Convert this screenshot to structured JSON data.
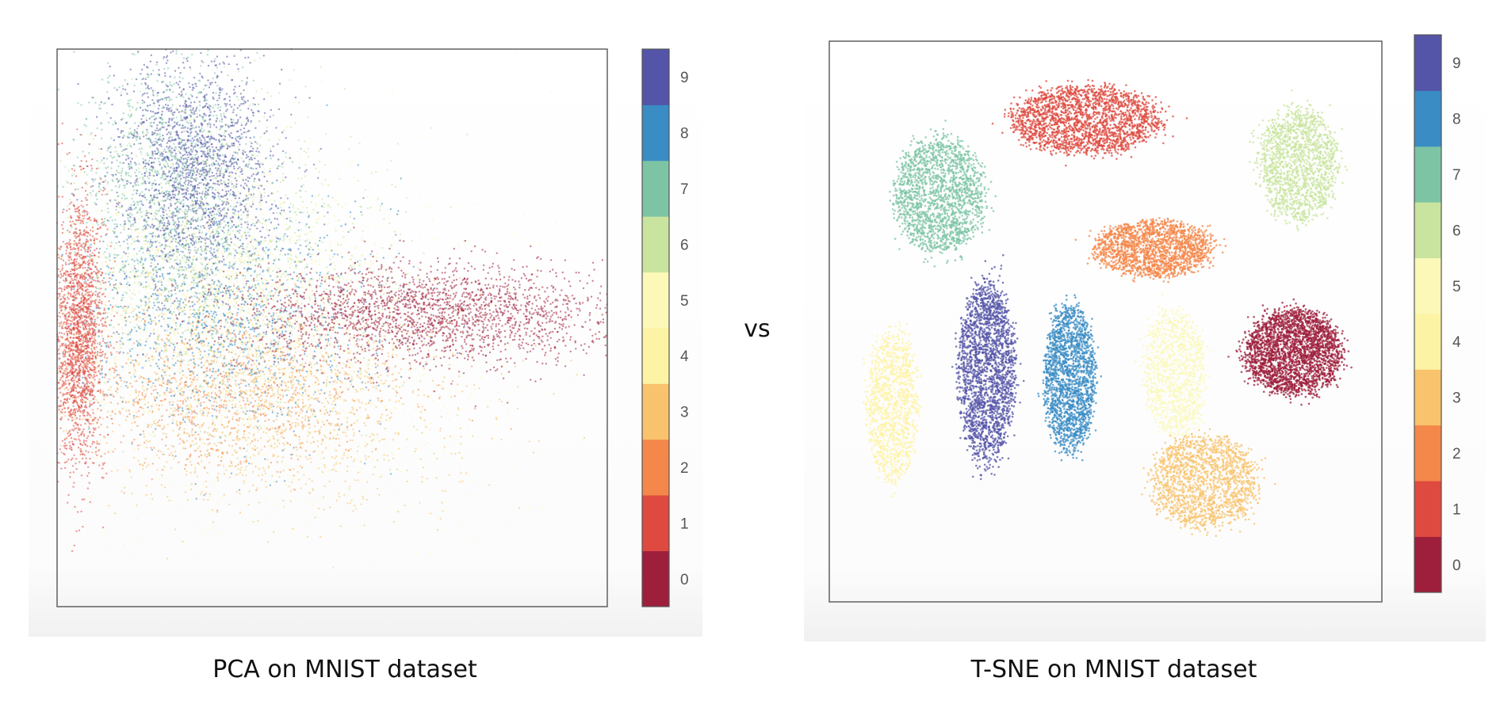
{
  "vs_label": "vs",
  "chart_data": [
    {
      "type": "scatter",
      "caption": "PCA on MNIST dataset",
      "title": "",
      "xlabel": "",
      "ylabel": "",
      "grid": false,
      "colorbar": {
        "type": "discrete",
        "labels": [
          "0",
          "1",
          "2",
          "3",
          "4",
          "5",
          "6",
          "7",
          "8",
          "9"
        ],
        "colors": [
          "#9e1f3c",
          "#de4a3f",
          "#f4874a",
          "#f8c36c",
          "#fdf3a4",
          "#fbf8b8",
          "#c8e49e",
          "#7cc4a4",
          "#3a8cc4",
          "#5454a8"
        ]
      },
      "xlim": [
        -1,
        1
      ],
      "ylim": [
        -1,
        1
      ],
      "clusters": [
        {
          "label": "0",
          "center": [
            0.35,
            0.05
          ],
          "spread": [
            0.34,
            0.09
          ],
          "points": 2300
        },
        {
          "label": "1",
          "center": [
            -0.92,
            0.0
          ],
          "spread": [
            0.045,
            0.24
          ],
          "points": 2000
        },
        {
          "label": "2",
          "center": [
            -0.42,
            -0.22
          ],
          "spread": [
            0.32,
            0.14
          ],
          "points": 900
        },
        {
          "label": "3",
          "center": [
            -0.22,
            -0.3
          ],
          "spread": [
            0.36,
            0.17
          ],
          "points": 1400
        },
        {
          "label": "4",
          "center": [
            -0.45,
            0.1
          ],
          "spread": [
            0.28,
            0.22
          ],
          "points": 1300
        },
        {
          "label": "5",
          "center": [
            -0.2,
            -0.05
          ],
          "spread": [
            0.42,
            0.3
          ],
          "points": 1000
        },
        {
          "label": "6",
          "center": [
            -0.35,
            0.22
          ],
          "spread": [
            0.3,
            0.3
          ],
          "points": 1200
        },
        {
          "label": "7",
          "center": [
            -0.6,
            0.5
          ],
          "spread": [
            0.15,
            0.24
          ],
          "points": 1400
        },
        {
          "label": "8",
          "center": [
            -0.4,
            0.05
          ],
          "spread": [
            0.3,
            0.22
          ],
          "points": 1300
        },
        {
          "label": "9",
          "center": [
            -0.5,
            0.58
          ],
          "spread": [
            0.15,
            0.2
          ],
          "points": 1700
        }
      ]
    },
    {
      "type": "scatter",
      "caption": "T-SNE on MNIST dataset",
      "title": "",
      "xlabel": "",
      "ylabel": "",
      "grid": false,
      "colorbar": {
        "type": "discrete",
        "labels": [
          "0",
          "1",
          "2",
          "3",
          "4",
          "5",
          "6",
          "7",
          "8",
          "9"
        ],
        "colors": [
          "#9e1f3c",
          "#de4a3f",
          "#f4874a",
          "#f8c36c",
          "#fdf3a4",
          "#fbf8b8",
          "#c8e49e",
          "#7cc4a4",
          "#3a8cc4",
          "#5454a8"
        ]
      },
      "xlim": [
        -1,
        1
      ],
      "ylim": [
        -1,
        1
      ],
      "clusters": [
        {
          "label": "0",
          "center": [
            0.68,
            -0.11
          ],
          "spread": [
            0.17,
            0.15
          ],
          "points": 2600
        },
        {
          "label": "1",
          "center": [
            -0.07,
            0.72
          ],
          "spread": [
            0.27,
            0.12
          ],
          "points": 2100
        },
        {
          "label": "2",
          "center": [
            0.17,
            0.26
          ],
          "spread": [
            0.21,
            0.1
          ],
          "points": 1800
        },
        {
          "label": "3",
          "center": [
            0.36,
            -0.57
          ],
          "spread": [
            0.19,
            0.16
          ],
          "points": 1600
        },
        {
          "label": "4",
          "center": [
            -0.77,
            -0.3
          ],
          "spread": [
            0.09,
            0.26
          ],
          "points": 1200
        },
        {
          "label": "5",
          "center": [
            0.25,
            -0.18
          ],
          "spread": [
            0.11,
            0.22
          ],
          "points": 1100
        },
        {
          "label": "6",
          "center": [
            0.7,
            0.56
          ],
          "spread": [
            0.14,
            0.2
          ],
          "points": 1500
        },
        {
          "label": "7",
          "center": [
            -0.6,
            0.45
          ],
          "spread": [
            0.16,
            0.2
          ],
          "points": 1800
        },
        {
          "label": "8",
          "center": [
            -0.13,
            -0.2
          ],
          "spread": [
            0.09,
            0.26
          ],
          "points": 1900
        },
        {
          "label": "9",
          "center": [
            -0.43,
            -0.18
          ],
          "spread": [
            0.1,
            0.32
          ],
          "points": 2200
        }
      ]
    }
  ]
}
